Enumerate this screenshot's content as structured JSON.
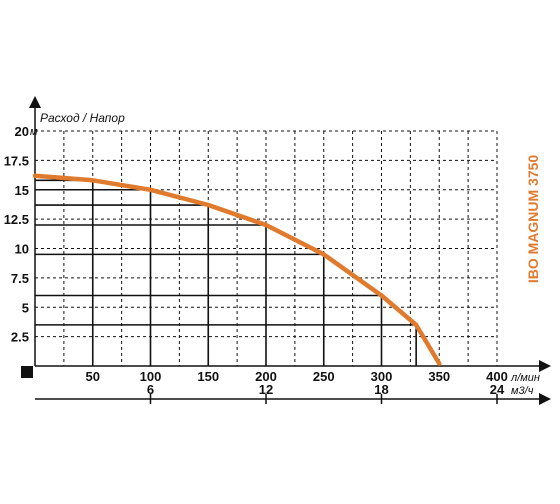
{
  "chart_data": {
    "type": "line",
    "title": "IBO MAGNUM 3750",
    "ylabel": "Расход / Напор",
    "y_unit": "м",
    "x_unit": "л/мин",
    "x2_unit": "м3/ч",
    "xlim": [
      0,
      400
    ],
    "ylim": [
      0,
      20
    ],
    "grid": true,
    "y_ticks": [
      "20",
      "17.5",
      "15",
      "12.5",
      "10",
      "7.5",
      "5",
      "2.5"
    ],
    "y_tick_values": [
      20,
      17.5,
      15,
      12.5,
      10,
      7.5,
      5,
      2.5
    ],
    "x_ticks": [
      "50",
      "100",
      "150",
      "200",
      "250",
      "300",
      "350",
      "400"
    ],
    "x_tick_values": [
      50,
      100,
      150,
      200,
      250,
      300,
      350,
      400
    ],
    "x2_ticks": [
      "6",
      "12",
      "18",
      "24"
    ],
    "x2_tick_values_lpm": [
      100,
      200,
      300,
      400
    ],
    "series": [
      {
        "x": [
          0,
          50,
          100,
          150,
          200,
          250,
          300,
          330,
          350
        ],
        "y": [
          16.2,
          15.8,
          15,
          13.7,
          12,
          9.5,
          6,
          3.5,
          0.2
        ],
        "color": "#e07b2e"
      }
    ],
    "marked_points": [
      {
        "x": 50,
        "y": 15.8
      },
      {
        "x": 100,
        "y": 15
      },
      {
        "x": 150,
        "y": 13.7
      },
      {
        "x": 200,
        "y": 12
      },
      {
        "x": 250,
        "y": 9.5
      },
      {
        "x": 300,
        "y": 6
      },
      {
        "x": 330,
        "y": 3.5
      }
    ],
    "colors": {
      "curve": "#e07b2e",
      "title": "#e07b2e",
      "grid": "#111111",
      "axis": "#111111"
    }
  }
}
